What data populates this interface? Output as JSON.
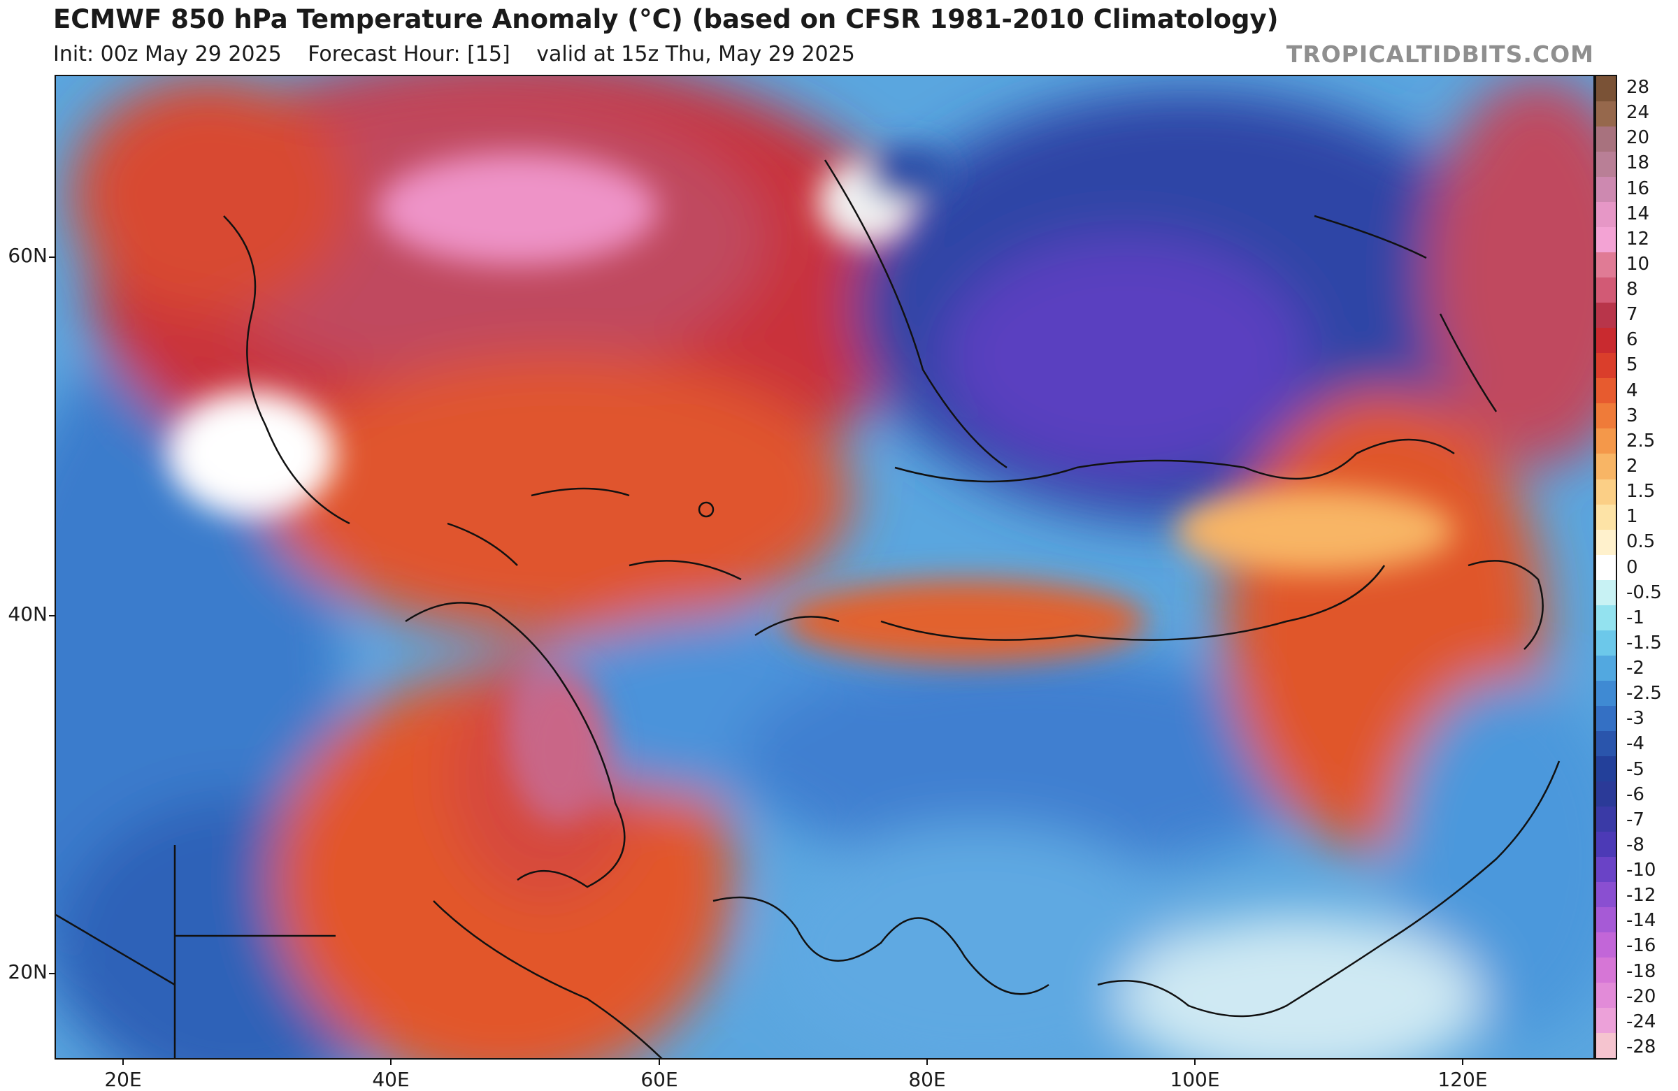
{
  "header": {
    "title": "ECMWF 850 hPa Temperature Anomaly (°C) (based on CFSR 1981-2010 Climatology)",
    "init": "Init: 00z May 29 2025",
    "forecast_hour": "Forecast Hour: [15]",
    "valid": "valid at 15z Thu, May 29 2025",
    "credit": "TROPICALTIDBITS.COM"
  },
  "map": {
    "lat_labels": [
      "60N",
      "40N",
      "20N"
    ],
    "lon_labels": [
      "20E",
      "40E",
      "60E",
      "80E",
      "100E",
      "120E"
    ]
  },
  "colorbar": {
    "labels": [
      "28",
      "24",
      "20",
      "18",
      "16",
      "14",
      "12",
      "10",
      "8",
      "7",
      "6",
      "5",
      "4",
      "3",
      "2.5",
      "2",
      "1.5",
      "1",
      "0.5",
      "0",
      "-0.5",
      "-1",
      "-1.5",
      "-2",
      "-2.5",
      "-3",
      "-4",
      "-5",
      "-6",
      "-7",
      "-8",
      "-10",
      "-12",
      "-14",
      "-16",
      "-18",
      "-20",
      "-24",
      "-28"
    ],
    "colors": [
      "#7a5236",
      "#96684c",
      "#a8727e",
      "#b97f96",
      "#cd89b0",
      "#e697c6",
      "#f3a3d4",
      "#e07b95",
      "#d25a75",
      "#b8354a",
      "#c92a2f",
      "#da3e2b",
      "#e75b2f",
      "#ef7b39",
      "#f4984a",
      "#f8b565",
      "#fbcf86",
      "#fde3a6",
      "#fff1cc",
      "#ffffff",
      "#c8f2f4",
      "#93e2ef",
      "#6cc8ea",
      "#52a8e0",
      "#3f8ad3",
      "#3470c4",
      "#2a55ac",
      "#23409a",
      "#2b3a98",
      "#3a3aa6",
      "#4c3ab6",
      "#6a43c6",
      "#8a4fd1",
      "#a65ad6",
      "#c266d8",
      "#d676d6",
      "#e28bd8",
      "#eca1d9",
      "#f5c4cf"
    ]
  }
}
